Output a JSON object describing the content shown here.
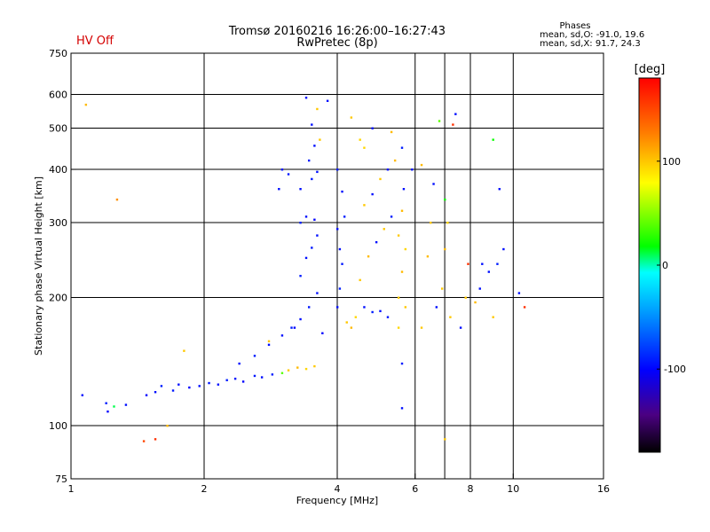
{
  "header": {
    "hv_status": "HV Off",
    "hv_color": "#d40000",
    "title_line1": "Tromsø 20160216 16:26:00–16:27:43",
    "title_line2": "RwPretec (8p)",
    "stats_title": "Phases",
    "stats_line1": "mean, sd,O: -91.0, 19.6",
    "stats_line2": "mean, sd,X:  91.7, 24.3"
  },
  "colorbar": {
    "unit_label": "[deg]",
    "ticks": [
      {
        "value": 100,
        "label": "100"
      },
      {
        "value": 0,
        "label": "0"
      },
      {
        "value": -100,
        "label": "-100"
      }
    ],
    "range": [
      -180,
      180
    ],
    "colors": [
      "#000000",
      "#4b0082",
      "#0000ff",
      "#00a0ff",
      "#00ffff",
      "#00ff00",
      "#ffff00",
      "#ff8000",
      "#ff0000"
    ]
  },
  "chart_data": {
    "type": "scatter",
    "title": "",
    "xlabel": "Frequency [MHz]",
    "ylabel": "Stationary phase Virtual Height [km]",
    "xscale": "log",
    "yscale": "log",
    "xlim": [
      1,
      16
    ],
    "ylim": [
      75,
      750
    ],
    "x_ticks": [
      {
        "value": 1,
        "label": "1"
      },
      {
        "value": 2,
        "label": "2"
      },
      {
        "value": 4,
        "label": "4"
      },
      {
        "value": 6,
        "label": "6"
      },
      {
        "value": 8,
        "label": "8"
      },
      {
        "value": 10,
        "label": "10"
      },
      {
        "value": 16,
        "label": "16"
      }
    ],
    "x_grid": [
      2,
      4,
      6,
      7,
      8,
      10
    ],
    "y_ticks": [
      {
        "value": 75,
        "label": "75"
      },
      {
        "value": 100,
        "label": "100"
      },
      {
        "value": 200,
        "label": "200"
      },
      {
        "value": 300,
        "label": "300"
      },
      {
        "value": 400,
        "label": "400"
      },
      {
        "value": 500,
        "label": "500"
      },
      {
        "value": 600,
        "label": "600"
      },
      {
        "value": 750,
        "label": "750"
      }
    ],
    "y_grid": [
      100,
      200,
      300,
      400,
      500,
      600
    ],
    "grid": true,
    "series": [
      {
        "color_meaning": "phase",
        "points": [
          [
            1.06,
            118,
            -95
          ],
          [
            1.2,
            113,
            -90
          ],
          [
            1.21,
            108,
            -100
          ],
          [
            1.25,
            111,
            10
          ],
          [
            1.33,
            112,
            -95
          ],
          [
            1.48,
            118,
            -100
          ],
          [
            1.55,
            120,
            -95
          ],
          [
            1.6,
            124,
            -90
          ],
          [
            1.7,
            121,
            -92
          ],
          [
            1.75,
            125,
            -95
          ],
          [
            1.85,
            123,
            -100
          ],
          [
            1.95,
            124,
            -95
          ],
          [
            2.05,
            126,
            -92
          ],
          [
            2.15,
            125,
            -95
          ],
          [
            2.25,
            128,
            -90
          ],
          [
            2.35,
            129,
            -95
          ],
          [
            2.45,
            127,
            -100
          ],
          [
            2.6,
            131,
            -92
          ],
          [
            2.7,
            130,
            -95
          ],
          [
            2.85,
            132,
            -90
          ],
          [
            3.0,
            133,
            40
          ],
          [
            3.1,
            135,
            100
          ],
          [
            3.25,
            137,
            105
          ],
          [
            3.4,
            136,
            95
          ],
          [
            3.55,
            138,
            100
          ],
          [
            2.4,
            140,
            -95
          ],
          [
            2.6,
            146,
            -90
          ],
          [
            2.8,
            155,
            -95
          ],
          [
            3.0,
            163,
            -95
          ],
          [
            3.15,
            170,
            -90
          ],
          [
            3.3,
            178,
            -95
          ],
          [
            3.45,
            190,
            -92
          ],
          [
            3.6,
            205,
            -95
          ],
          [
            3.3,
            225,
            -90
          ],
          [
            3.4,
            248,
            -95
          ],
          [
            3.5,
            262,
            -92
          ],
          [
            3.6,
            280,
            -95
          ],
          [
            3.3,
            300,
            -90
          ],
          [
            3.4,
            310,
            -95
          ],
          [
            3.55,
            305,
            -100
          ],
          [
            3.3,
            360,
            -95
          ],
          [
            3.5,
            380,
            -92
          ],
          [
            3.6,
            395,
            -95
          ],
          [
            3.45,
            420,
            -90
          ],
          [
            3.55,
            455,
            -95
          ],
          [
            3.65,
            470,
            100
          ],
          [
            3.5,
            510,
            -95
          ],
          [
            3.6,
            555,
            100
          ],
          [
            3.4,
            590,
            -95
          ],
          [
            2.95,
            360,
            -95
          ],
          [
            3.1,
            390,
            -92
          ],
          [
            3.0,
            400,
            -95
          ],
          [
            4.0,
            190,
            -95
          ],
          [
            4.05,
            210,
            -90
          ],
          [
            4.1,
            240,
            -92
          ],
          [
            4.05,
            260,
            -95
          ],
          [
            4.0,
            290,
            -95
          ],
          [
            4.15,
            310,
            -90
          ],
          [
            4.1,
            355,
            -95
          ],
          [
            4.0,
            400,
            -92
          ],
          [
            4.2,
            175,
            100
          ],
          [
            4.3,
            170,
            105
          ],
          [
            4.4,
            180,
            95
          ],
          [
            4.6,
            190,
            -95
          ],
          [
            4.8,
            185,
            -90
          ],
          [
            5.0,
            186,
            -95
          ],
          [
            5.2,
            180,
            -92
          ],
          [
            4.5,
            220,
            100
          ],
          [
            4.7,
            250,
            105
          ],
          [
            4.9,
            270,
            -95
          ],
          [
            5.1,
            290,
            100
          ],
          [
            5.3,
            310,
            -90
          ],
          [
            4.6,
            330,
            100
          ],
          [
            4.8,
            350,
            -95
          ],
          [
            5.0,
            380,
            100
          ],
          [
            5.2,
            400,
            -95
          ],
          [
            5.4,
            420,
            105
          ],
          [
            5.6,
            450,
            -90
          ],
          [
            4.5,
            470,
            95
          ],
          [
            4.8,
            500,
            -95
          ],
          [
            5.5,
            200,
            100
          ],
          [
            5.6,
            230,
            105
          ],
          [
            5.7,
            260,
            95
          ],
          [
            5.5,
            280,
            100
          ],
          [
            5.6,
            320,
            105
          ],
          [
            5.65,
            360,
            -95
          ],
          [
            5.7,
            190,
            100
          ],
          [
            5.5,
            170,
            95
          ],
          [
            5.6,
            140,
            -90
          ],
          [
            5.6,
            110,
            -95
          ],
          [
            6.2,
            170,
            100
          ],
          [
            6.4,
            250,
            105
          ],
          [
            6.5,
            300,
            100
          ],
          [
            6.7,
            190,
            -95
          ],
          [
            6.9,
            210,
            100
          ],
          [
            7.0,
            260,
            105
          ],
          [
            7.1,
            300,
            95
          ],
          [
            7.2,
            180,
            100
          ],
          [
            7.3,
            510,
            160
          ],
          [
            7.4,
            540,
            -95
          ],
          [
            7.0,
            93,
            100
          ],
          [
            7.6,
            170,
            -95
          ],
          [
            7.8,
            200,
            100
          ],
          [
            7.9,
            240,
            160
          ],
          [
            8.2,
            195,
            105
          ],
          [
            8.4,
            210,
            -95
          ],
          [
            8.5,
            240,
            -95
          ],
          [
            8.8,
            230,
            -95
          ],
          [
            9.0,
            180,
            100
          ],
          [
            9.2,
            240,
            -90
          ],
          [
            9.5,
            260,
            -95
          ],
          [
            9.3,
            360,
            -95
          ],
          [
            9.0,
            470,
            20
          ],
          [
            10.3,
            205,
            -95
          ],
          [
            10.6,
            190,
            160
          ],
          [
            1.08,
            568,
            105
          ],
          [
            1.27,
            340,
            120
          ],
          [
            1.46,
            92,
            150
          ],
          [
            1.55,
            93,
            160
          ],
          [
            1.65,
            100,
            105
          ],
          [
            1.8,
            150,
            100
          ],
          [
            2.8,
            158,
            100
          ],
          [
            3.2,
            170,
            -100
          ],
          [
            3.7,
            165,
            -100
          ],
          [
            3.8,
            580,
            -95
          ],
          [
            4.3,
            530,
            100
          ],
          [
            4.6,
            450,
            95
          ],
          [
            5.3,
            490,
            105
          ],
          [
            5.9,
            400,
            -95
          ],
          [
            6.2,
            410,
            105
          ],
          [
            6.6,
            370,
            -95
          ],
          [
            6.8,
            520,
            40
          ],
          [
            7.0,
            340,
            20
          ]
        ]
      }
    ]
  }
}
